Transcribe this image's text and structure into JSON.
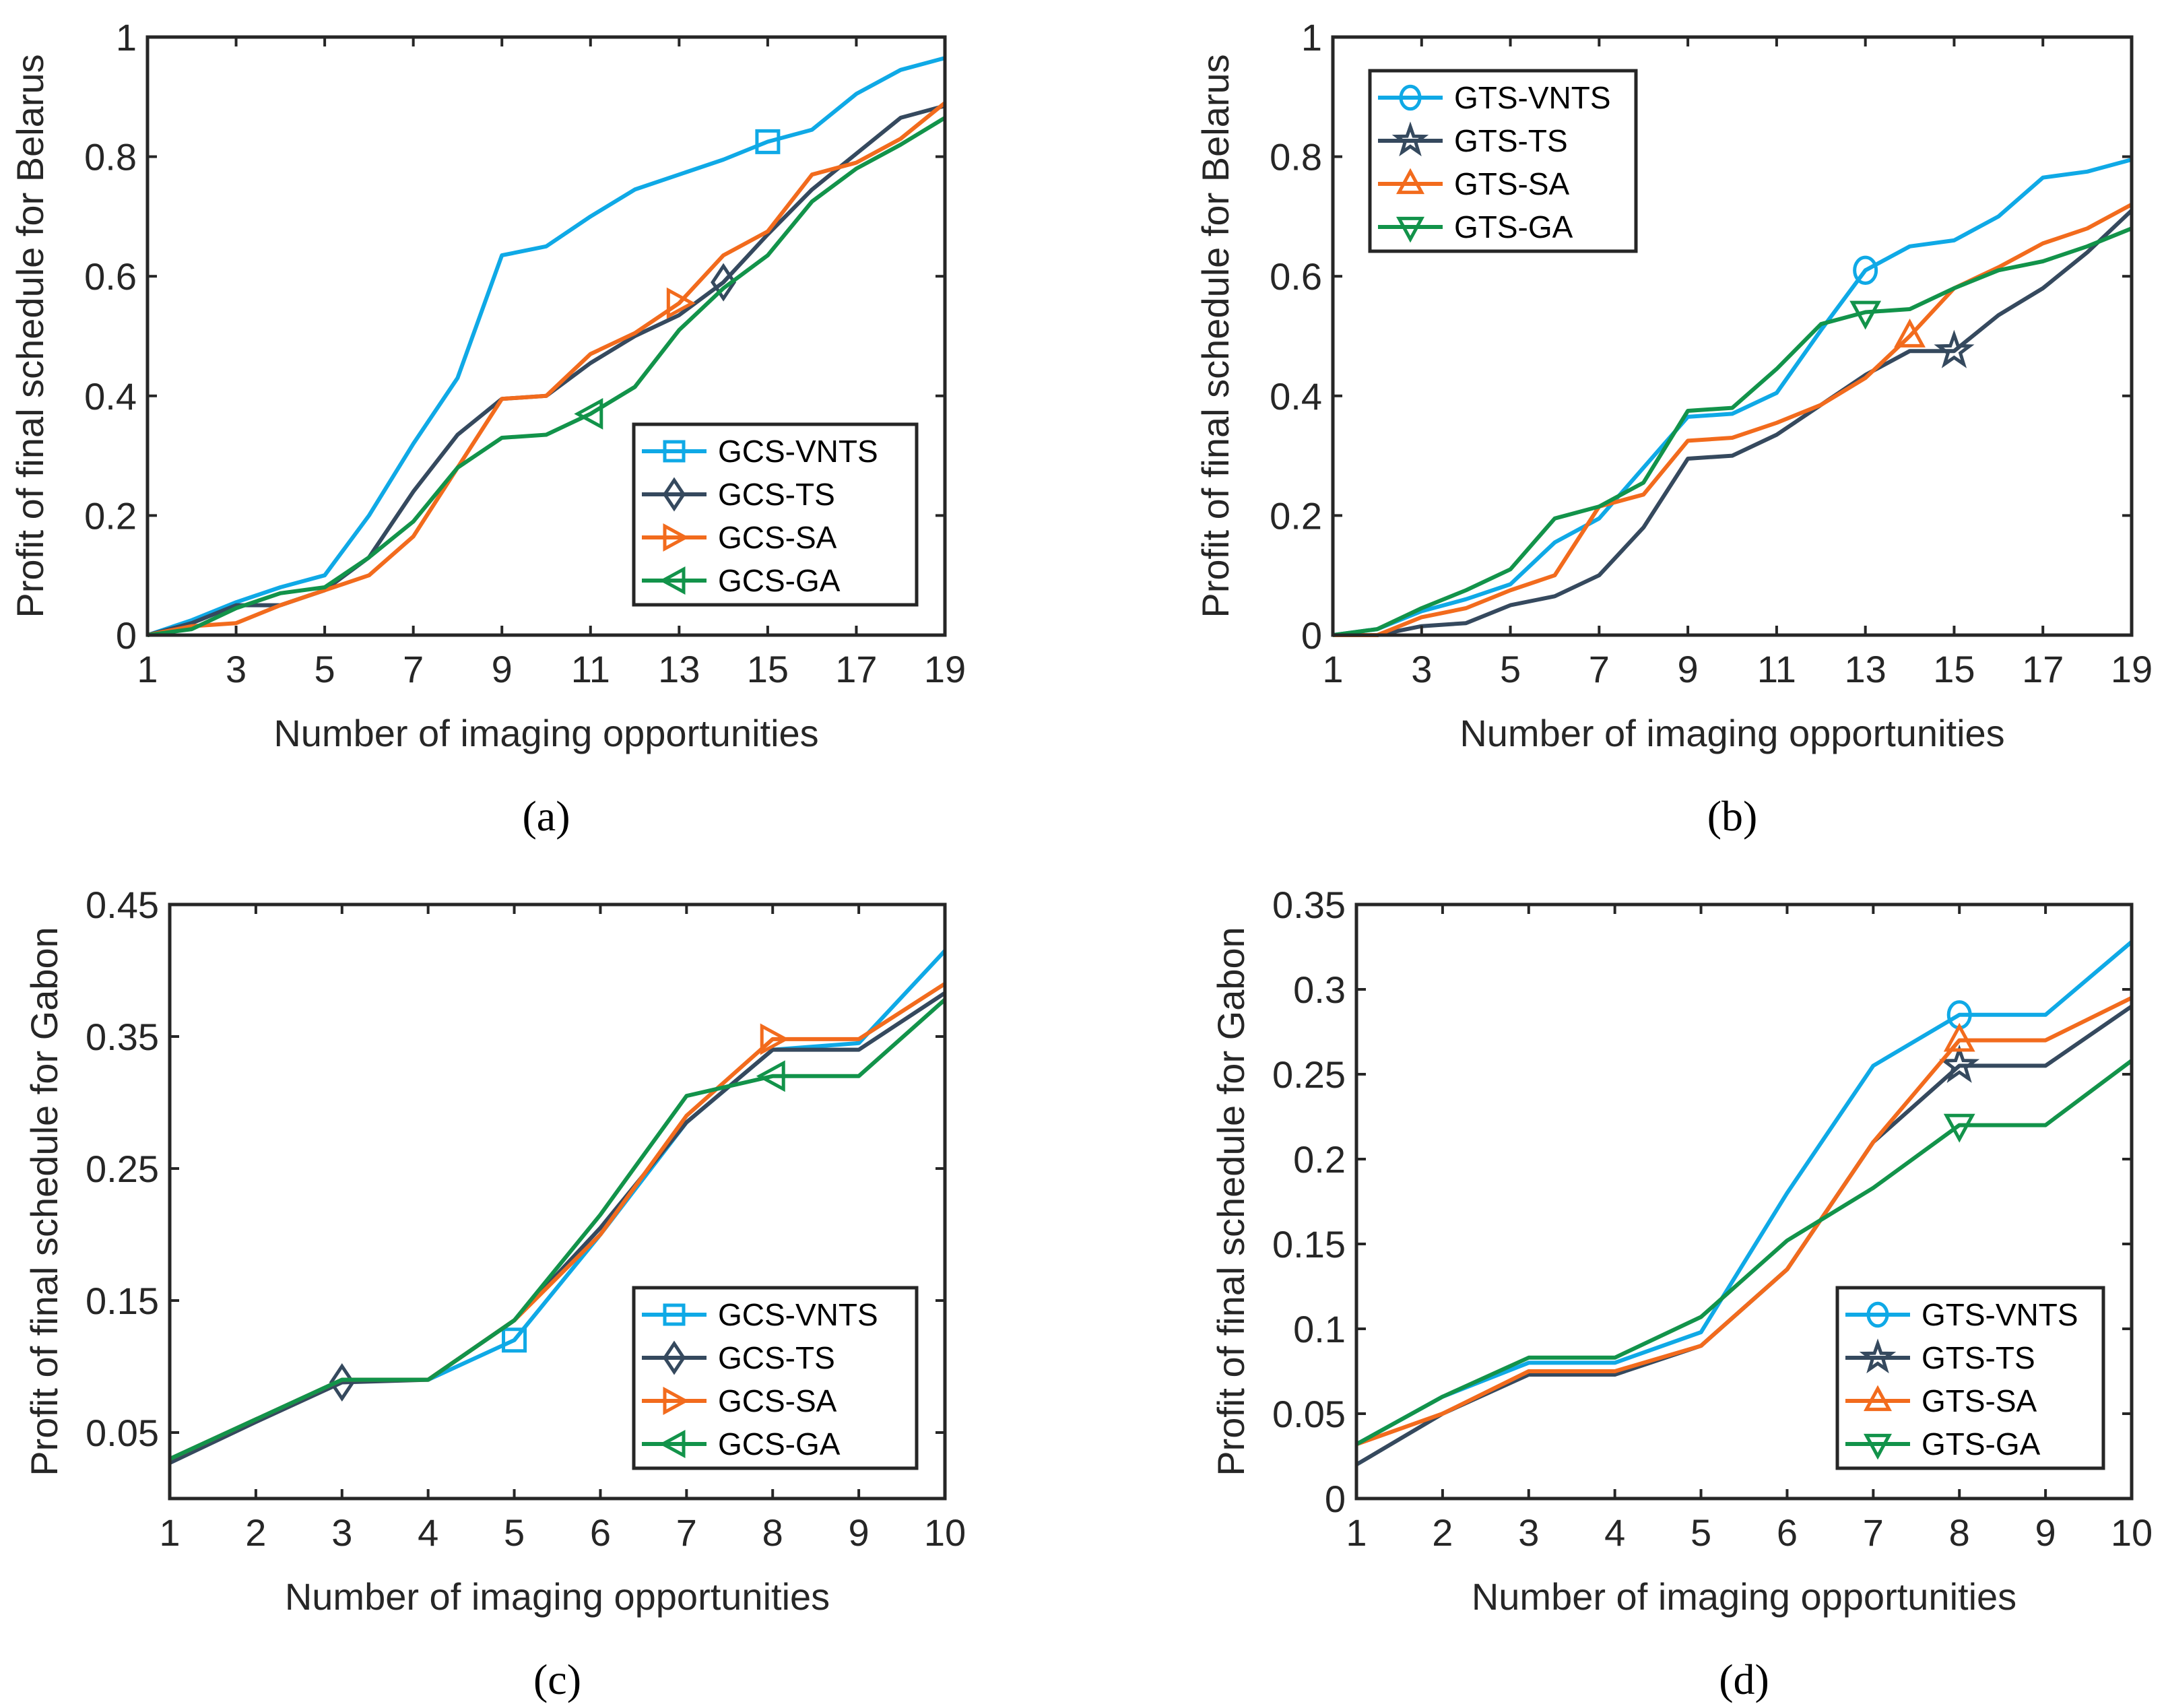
{
  "colors": {
    "VNTS": "#0fa9e6",
    "TS": "#35495e",
    "SA": "#f26b1d",
    "GA": "#12934a"
  },
  "chart_data": [
    {
      "type": "line",
      "caption": "(a)",
      "xlabel": "Number of imaging opportunities",
      "ylabel": "Profit of final schedule for Belarus",
      "x": [
        1,
        2,
        3,
        4,
        5,
        6,
        7,
        8,
        9,
        10,
        11,
        12,
        13,
        14,
        15,
        16,
        17,
        18,
        19
      ],
      "xlim": [
        1,
        19
      ],
      "xticks": [
        1,
        3,
        5,
        7,
        9,
        11,
        13,
        15,
        17,
        19
      ],
      "ylim": [
        0,
        1
      ],
      "yticks": [
        0,
        0.2,
        0.4,
        0.6,
        0.8,
        1
      ],
      "ytick_labels": [
        "0",
        "0.2",
        "0.4",
        "0.6",
        "0.8",
        "1"
      ],
      "legend_position": "bottom-right",
      "series": [
        {
          "name": "GCS-VNTS",
          "key": "VNTS",
          "marker": "square",
          "marker_at": 15,
          "values": [
            0,
            0.025,
            0.055,
            0.08,
            0.1,
            0.2,
            0.32,
            0.43,
            0.635,
            0.65,
            0.7,
            0.745,
            0.77,
            0.795,
            0.825,
            0.845,
            0.905,
            0.945,
            0.965
          ]
        },
        {
          "name": "GCS-TS",
          "key": "TS",
          "marker": "diamond",
          "marker_at": 14,
          "values": [
            0,
            0.02,
            0.05,
            0.05,
            0.075,
            0.13,
            0.24,
            0.335,
            0.395,
            0.4,
            0.455,
            0.5,
            0.535,
            0.59,
            0.67,
            0.745,
            0.805,
            0.865,
            0.885
          ]
        },
        {
          "name": "GCS-SA",
          "key": "SA",
          "marker": "triangle-right",
          "marker_at": 13,
          "values": [
            0,
            0.015,
            0.02,
            0.05,
            0.075,
            0.1,
            0.165,
            0.28,
            0.395,
            0.4,
            0.47,
            0.505,
            0.555,
            0.635,
            0.675,
            0.77,
            0.79,
            0.83,
            0.89
          ]
        },
        {
          "name": "GCS-GA",
          "key": "GA",
          "marker": "triangle-left",
          "marker_at": 11,
          "values": [
            0,
            0.01,
            0.045,
            0.07,
            0.08,
            0.13,
            0.19,
            0.28,
            0.33,
            0.335,
            0.37,
            0.415,
            0.51,
            0.58,
            0.635,
            0.725,
            0.78,
            0.82,
            0.865
          ]
        }
      ]
    },
    {
      "type": "line",
      "caption": "(b)",
      "xlabel": "Number of imaging opportunities",
      "ylabel": "Profit of final schedule for Belarus",
      "x": [
        1,
        2,
        3,
        4,
        5,
        6,
        7,
        8,
        9,
        10,
        11,
        12,
        13,
        14,
        15,
        16,
        17,
        18,
        19
      ],
      "xlim": [
        1,
        19
      ],
      "xticks": [
        1,
        3,
        5,
        7,
        9,
        11,
        13,
        15,
        17,
        19
      ],
      "ylim": [
        0,
        1
      ],
      "yticks": [
        0,
        0.2,
        0.4,
        0.6,
        0.8,
        1
      ],
      "ytick_labels": [
        "0",
        "0.2",
        "0.4",
        "0.6",
        "0.8",
        "1"
      ],
      "legend_position": "top-left",
      "series": [
        {
          "name": "GTS-VNTS",
          "key": "VNTS",
          "marker": "circle",
          "marker_at": 13,
          "values": [
            0,
            0.01,
            0.04,
            0.06,
            0.085,
            0.155,
            0.195,
            0.28,
            0.365,
            0.37,
            0.405,
            0.51,
            0.61,
            0.65,
            0.66,
            0.7,
            0.765,
            0.775,
            0.795
          ]
        },
        {
          "name": "GTS-TS",
          "key": "TS",
          "marker": "star",
          "marker_at": 15,
          "values": [
            0,
            0,
            0.015,
            0.02,
            0.05,
            0.065,
            0.1,
            0.18,
            0.295,
            0.3,
            0.335,
            0.385,
            0.435,
            0.475,
            0.475,
            0.535,
            0.58,
            0.64,
            0.71
          ]
        },
        {
          "name": "GTS-SA",
          "key": "SA",
          "marker": "triangle-up",
          "marker_at": 14,
          "values": [
            0,
            0,
            0.03,
            0.045,
            0.075,
            0.1,
            0.215,
            0.235,
            0.325,
            0.33,
            0.355,
            0.385,
            0.43,
            0.5,
            0.58,
            0.615,
            0.655,
            0.68,
            0.72
          ]
        },
        {
          "name": "GTS-GA",
          "key": "GA",
          "marker": "triangle-down",
          "marker_at": 13,
          "values": [
            0,
            0.01,
            0.045,
            0.075,
            0.11,
            0.195,
            0.215,
            0.255,
            0.375,
            0.38,
            0.445,
            0.52,
            0.54,
            0.545,
            0.58,
            0.61,
            0.625,
            0.65,
            0.68
          ]
        }
      ]
    },
    {
      "type": "line",
      "caption": "(c)",
      "xlabel": "Number of imaging opportunities",
      "ylabel": "Profit of final schedule for Gabon",
      "x": [
        1,
        2,
        3,
        4,
        5,
        6,
        7,
        8,
        9,
        10
      ],
      "xlim": [
        1,
        10
      ],
      "xticks": [
        1,
        2,
        3,
        4,
        5,
        6,
        7,
        8,
        9,
        10
      ],
      "ylim": [
        0,
        0.45
      ],
      "yticks": [
        0.05,
        0.15,
        0.25,
        0.35,
        0.45
      ],
      "ytick_labels": [
        "0.05",
        "0.15",
        "0.25",
        "0.35",
        "0.45"
      ],
      "legend_position": "bottom-right",
      "series": [
        {
          "name": "GCS-VNTS",
          "key": "VNTS",
          "marker": "square",
          "marker_at": 5,
          "values": [
            0.03,
            0.06,
            0.09,
            0.09,
            0.12,
            0.2,
            0.285,
            0.34,
            0.345,
            0.415
          ]
        },
        {
          "name": "GCS-TS",
          "key": "TS",
          "marker": "diamond",
          "marker_at": 3,
          "values": [
            0.027,
            0.058,
            0.088,
            0.09,
            0.135,
            0.205,
            0.285,
            0.34,
            0.34,
            0.383
          ]
        },
        {
          "name": "GCS-SA",
          "key": "SA",
          "marker": "triangle-right",
          "marker_at": 8,
          "values": [
            0.03,
            0.06,
            0.09,
            0.09,
            0.135,
            0.2,
            0.29,
            0.348,
            0.348,
            0.39
          ]
        },
        {
          "name": "GCS-GA",
          "key": "GA",
          "marker": "triangle-left",
          "marker_at": 8,
          "values": [
            0.03,
            0.06,
            0.09,
            0.09,
            0.135,
            0.215,
            0.305,
            0.32,
            0.32,
            0.378
          ]
        }
      ]
    },
    {
      "type": "line",
      "caption": "(d)",
      "xlabel": "Number of imaging opportunities",
      "ylabel": "Profit of final schedule for Gabon",
      "x": [
        1,
        2,
        3,
        4,
        5,
        6,
        7,
        8,
        9,
        10
      ],
      "xlim": [
        1,
        10
      ],
      "xticks": [
        1,
        2,
        3,
        4,
        5,
        6,
        7,
        8,
        9,
        10
      ],
      "ylim": [
        0,
        0.35
      ],
      "yticks": [
        0,
        0.05,
        0.1,
        0.15,
        0.2,
        0.25,
        0.3,
        0.35
      ],
      "ytick_labels": [
        "0",
        "0.05",
        "0.1",
        "0.15",
        "0.2",
        "0.25",
        "0.3",
        "0.35"
      ],
      "legend_position": "bottom-right",
      "series": [
        {
          "name": "GTS-VNTS",
          "key": "VNTS",
          "marker": "circle",
          "marker_at": 8,
          "values": [
            0.032,
            0.06,
            0.08,
            0.08,
            0.098,
            0.18,
            0.255,
            0.285,
            0.285,
            0.328
          ]
        },
        {
          "name": "GTS-TS",
          "key": "TS",
          "marker": "star",
          "marker_at": 8,
          "values": [
            0.02,
            0.05,
            0.073,
            0.073,
            0.09,
            0.135,
            0.21,
            0.255,
            0.255,
            0.29
          ]
        },
        {
          "name": "GTS-SA",
          "key": "SA",
          "marker": "triangle-up",
          "marker_at": 8,
          "values": [
            0.032,
            0.05,
            0.075,
            0.075,
            0.09,
            0.135,
            0.21,
            0.27,
            0.27,
            0.295
          ]
        },
        {
          "name": "GTS-GA",
          "key": "GA",
          "marker": "triangle-down",
          "marker_at": 8,
          "values": [
            0.032,
            0.06,
            0.083,
            0.083,
            0.107,
            0.152,
            0.183,
            0.22,
            0.22,
            0.258
          ]
        }
      ]
    }
  ]
}
